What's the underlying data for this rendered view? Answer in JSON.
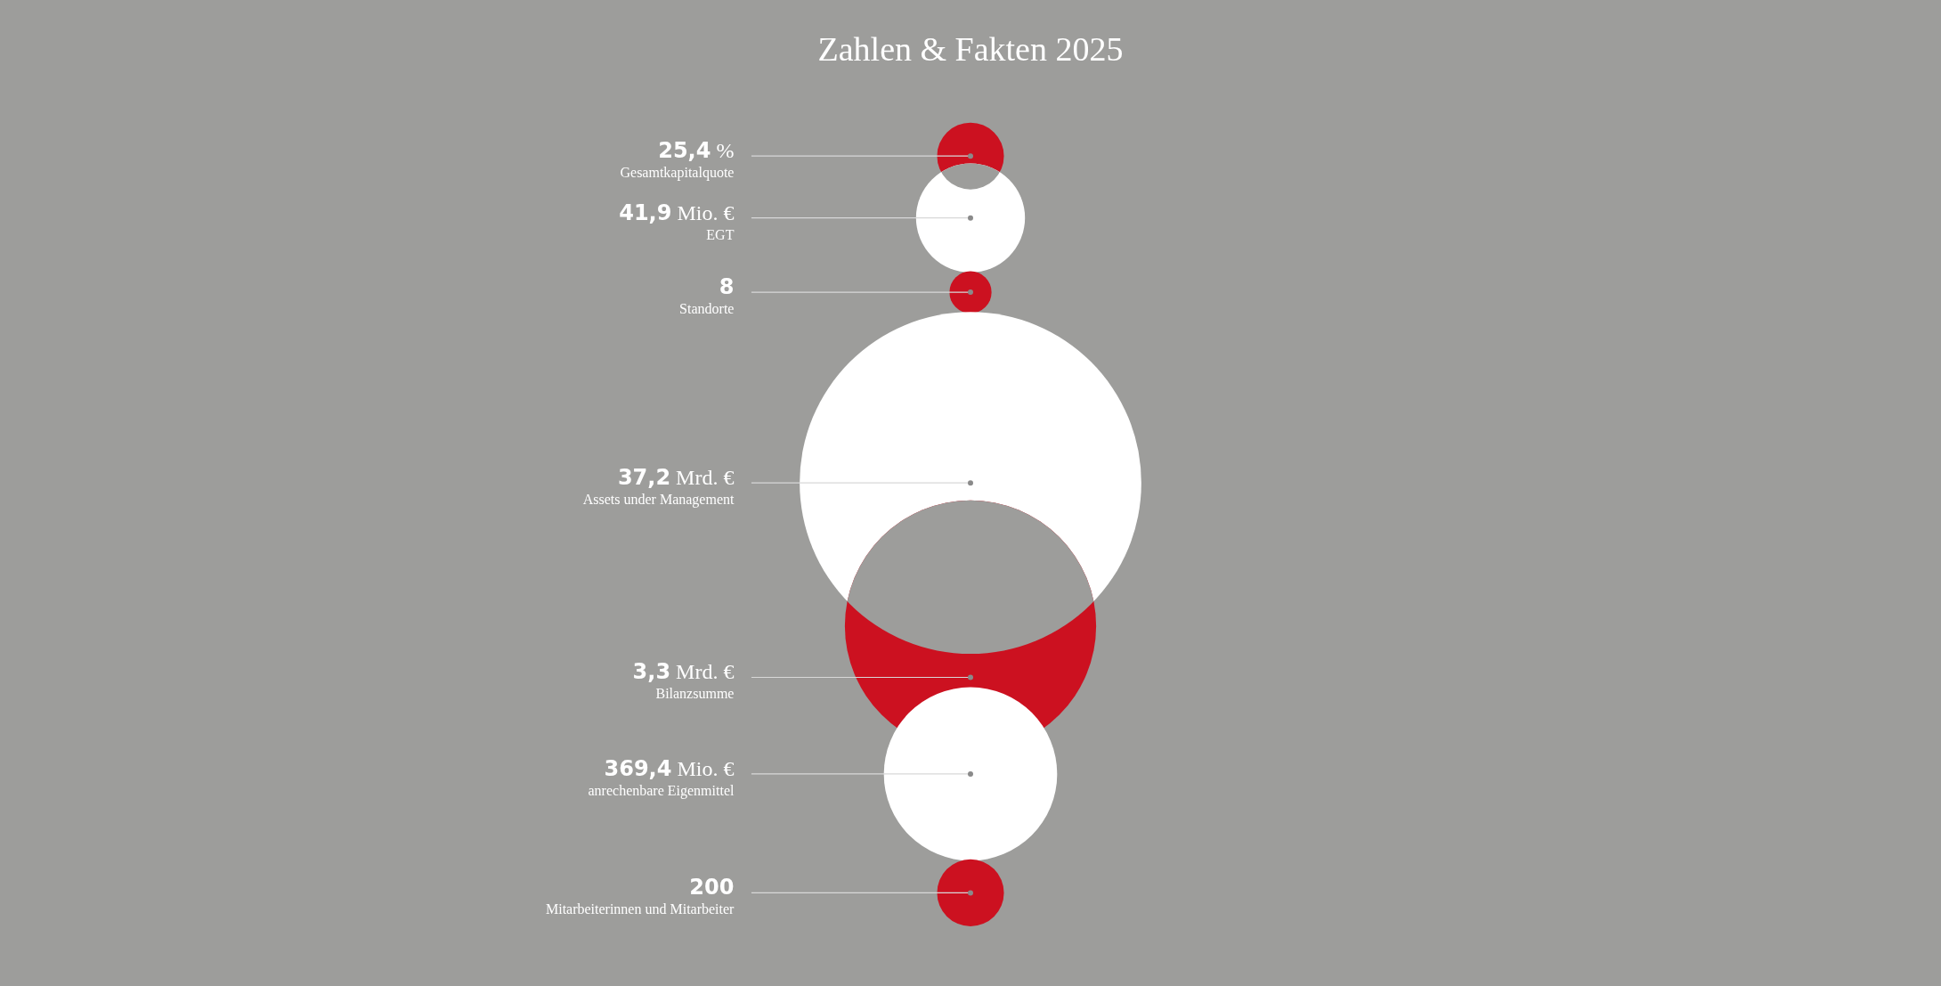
{
  "chart_data": {
    "type": "other",
    "title": "Zahlen & Fakten 2025",
    "categories": [
      "Gesamtkapitalquote",
      "EGT",
      "Standorte",
      "Assets under Management",
      "Bilanzsumme",
      "anrechenbare Eigenmittel",
      "Mitarbeiterinnen und Mitarbeiter"
    ],
    "values": [
      25.4,
      41.9,
      8,
      37.2,
      3.3,
      369.4,
      200
    ],
    "value_labels": [
      "25,4 %",
      "41,9 Mio. €",
      "8",
      "37,2 Mrd. €",
      "3,3 Mrd. €",
      "369,4 Mio. €",
      "200"
    ],
    "colors": [
      "#cc1120",
      "#ffffff",
      "#cc1120",
      "#ffffff",
      "#cc1120",
      "#ffffff",
      "#cc1120"
    ]
  }
}
